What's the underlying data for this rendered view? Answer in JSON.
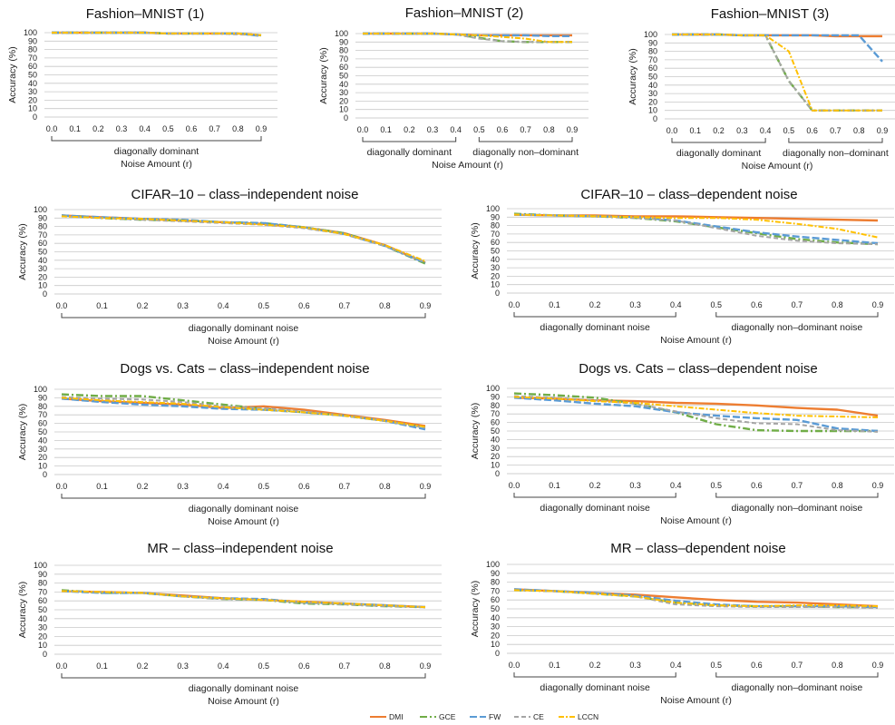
{
  "colors": {
    "DMI": "#ED7D31",
    "GCE": "#70AD47",
    "FW": "#5B9BD5",
    "CE": "#A5A5A5",
    "LCCN": "#FFC000"
  },
  "legend": [
    "DMI",
    "GCE",
    "FW",
    "CE",
    "LCCN"
  ],
  "chart_data": [
    {
      "type": "line",
      "title": "Fashion–MNIST (1)",
      "ylabel": "Accuracy (%)",
      "xlabel": "Noise Amount (r)",
      "ylim": [
        0,
        100
      ],
      "yticks": [
        0,
        10,
        20,
        30,
        40,
        50,
        60,
        70,
        80,
        90,
        100
      ],
      "x": [
        0.0,
        0.1,
        0.2,
        0.3,
        0.4,
        0.5,
        0.6,
        0.7,
        0.8,
        0.9
      ],
      "brackets": [
        {
          "label": "diagonally dominant",
          "from": 0.0,
          "to": 0.9
        }
      ],
      "series": [
        {
          "name": "DMI",
          "values": [
            100,
            100,
            100,
            100,
            100,
            99,
            99,
            99,
            99,
            97
          ]
        },
        {
          "name": "GCE",
          "values": [
            100,
            100,
            100,
            100,
            100,
            99,
            99,
            99,
            99,
            97
          ]
        },
        {
          "name": "FW",
          "values": [
            100,
            100,
            100,
            100,
            100,
            99,
            99,
            99,
            99,
            96
          ]
        },
        {
          "name": "CE",
          "values": [
            100,
            100,
            100,
            100,
            100,
            99,
            99,
            99,
            98,
            97
          ]
        },
        {
          "name": "LCCN",
          "values": [
            100,
            100,
            100,
            100,
            100,
            99,
            99,
            99,
            99,
            97
          ]
        }
      ]
    },
    {
      "type": "line",
      "title": "Fashion–MNIST (2)",
      "ylabel": "Accuracy (%)",
      "xlabel": "Noise Amount (r)",
      "ylim": [
        0,
        100
      ],
      "yticks": [
        0,
        10,
        20,
        30,
        40,
        50,
        60,
        70,
        80,
        90,
        100
      ],
      "x": [
        0.0,
        0.1,
        0.2,
        0.3,
        0.4,
        0.5,
        0.6,
        0.7,
        0.8,
        0.9
      ],
      "brackets": [
        {
          "label": "diagonally dominant",
          "from": 0.0,
          "to": 0.4
        },
        {
          "label": "diagonally non–dominant",
          "from": 0.5,
          "to": 0.9
        }
      ],
      "series": [
        {
          "name": "DMI",
          "values": [
            100,
            100,
            100,
            100,
            99,
            98,
            98,
            98,
            98,
            98
          ]
        },
        {
          "name": "GCE",
          "values": [
            100,
            100,
            100,
            100,
            99,
            95,
            91,
            90,
            90,
            90
          ]
        },
        {
          "name": "FW",
          "values": [
            100,
            100,
            100,
            100,
            99,
            98,
            98,
            98,
            97,
            97
          ]
        },
        {
          "name": "CE",
          "values": [
            100,
            100,
            100,
            100,
            99,
            94,
            91,
            90,
            90,
            90
          ]
        },
        {
          "name": "LCCN",
          "values": [
            100,
            100,
            100,
            100,
            99,
            98,
            96,
            94,
            90,
            90
          ]
        }
      ]
    },
    {
      "type": "line",
      "title": "Fashion–MNIST (3)",
      "ylabel": "Accuracy (%)",
      "xlabel": "Noise Amount (r)",
      "ylim": [
        0,
        100
      ],
      "yticks": [
        0,
        10,
        20,
        30,
        40,
        50,
        60,
        70,
        80,
        90,
        100
      ],
      "x": [
        0.0,
        0.1,
        0.2,
        0.3,
        0.4,
        0.5,
        0.6,
        0.7,
        0.8,
        0.9
      ],
      "brackets": [
        {
          "label": "diagonally dominant",
          "from": 0.0,
          "to": 0.4
        },
        {
          "label": "diagonally non–dominant",
          "from": 0.5,
          "to": 0.9
        }
      ],
      "series": [
        {
          "name": "DMI",
          "values": [
            100,
            100,
            100,
            99,
            99,
            99,
            99,
            98,
            98,
            98
          ]
        },
        {
          "name": "GCE",
          "values": [
            100,
            100,
            100,
            99,
            99,
            45,
            10,
            10,
            10,
            10
          ]
        },
        {
          "name": "FW",
          "values": [
            100,
            100,
            100,
            99,
            99,
            99,
            99,
            99,
            99,
            68
          ]
        },
        {
          "name": "CE",
          "values": [
            100,
            100,
            100,
            99,
            99,
            45,
            10,
            10,
            10,
            10
          ]
        },
        {
          "name": "LCCN",
          "values": [
            100,
            100,
            100,
            99,
            99,
            80,
            10,
            10,
            10,
            10
          ]
        }
      ]
    },
    {
      "type": "line",
      "title": "CIFAR–10 – class–independent noise",
      "ylabel": "Accuracy (%)",
      "xlabel": "Noise Amount (r)",
      "ylim": [
        0,
        100
      ],
      "yticks": [
        0,
        10,
        20,
        30,
        40,
        50,
        60,
        70,
        80,
        90,
        100
      ],
      "x": [
        0.0,
        0.1,
        0.2,
        0.3,
        0.4,
        0.5,
        0.6,
        0.7,
        0.8,
        0.9
      ],
      "brackets": [
        {
          "label": "diagonally dominant noise",
          "from": 0.0,
          "to": 0.9
        }
      ],
      "series": [
        {
          "name": "DMI",
          "values": [
            93,
            91,
            89,
            87,
            85,
            83,
            79,
            72,
            58,
            37
          ]
        },
        {
          "name": "GCE",
          "values": [
            93,
            90,
            88,
            87,
            85,
            84,
            79,
            72,
            57,
            36
          ]
        },
        {
          "name": "FW",
          "values": [
            93,
            91,
            89,
            88,
            85,
            84,
            79,
            71,
            57,
            37
          ]
        },
        {
          "name": "CE",
          "values": [
            92,
            90,
            88,
            86,
            84,
            82,
            78,
            71,
            57,
            38
          ]
        },
        {
          "name": "LCCN",
          "values": [
            92,
            90,
            89,
            87,
            85,
            82,
            79,
            71,
            58,
            39
          ]
        }
      ]
    },
    {
      "type": "line",
      "title": "CIFAR–10 – class–dependent noise",
      "ylabel": "Accuracy (%)",
      "xlabel": "Noise Amount (r)",
      "ylim": [
        0,
        100
      ],
      "yticks": [
        0,
        10,
        20,
        30,
        40,
        50,
        60,
        70,
        80,
        90,
        100
      ],
      "x": [
        0.0,
        0.1,
        0.2,
        0.3,
        0.4,
        0.5,
        0.6,
        0.7,
        0.8,
        0.9
      ],
      "brackets": [
        {
          "label": "diagonally dominant noise",
          "from": 0.0,
          "to": 0.4
        },
        {
          "label": "diagonally non–dominant noise",
          "from": 0.5,
          "to": 0.9
        }
      ],
      "series": [
        {
          "name": "DMI",
          "values": [
            93,
            92,
            92,
            91,
            91,
            90,
            89,
            88,
            87,
            86
          ]
        },
        {
          "name": "GCE",
          "values": [
            94,
            92,
            91,
            89,
            85,
            78,
            71,
            64,
            60,
            58
          ]
        },
        {
          "name": "FW",
          "values": [
            93,
            92,
            91,
            90,
            86,
            79,
            72,
            67,
            63,
            59
          ]
        },
        {
          "name": "CE",
          "values": [
            93,
            92,
            91,
            89,
            86,
            77,
            68,
            62,
            59,
            58
          ]
        },
        {
          "name": "LCCN",
          "values": [
            93,
            92,
            91,
            90,
            89,
            89,
            87,
            82,
            76,
            66
          ]
        }
      ]
    },
    {
      "type": "line",
      "title": "Dogs vs. Cats – class–independent noise",
      "ylabel": "Accuracy (%)",
      "xlabel": "Noise Amount (r)",
      "ylim": [
        0,
        100
      ],
      "yticks": [
        0,
        10,
        20,
        30,
        40,
        50,
        60,
        70,
        80,
        90,
        100
      ],
      "x": [
        0.0,
        0.1,
        0.2,
        0.3,
        0.4,
        0.5,
        0.6,
        0.7,
        0.8,
        0.9
      ],
      "brackets": [
        {
          "label": "diagonally dominant noise",
          "from": 0.0,
          "to": 0.9
        }
      ],
      "series": [
        {
          "name": "DMI",
          "values": [
            89,
            86,
            84,
            82,
            78,
            80,
            76,
            70,
            64,
            57
          ]
        },
        {
          "name": "GCE",
          "values": [
            94,
            92,
            92,
            87,
            82,
            77,
            73,
            69,
            63,
            55
          ]
        },
        {
          "name": "FW",
          "values": [
            89,
            85,
            82,
            80,
            77,
            76,
            73,
            69,
            63,
            53
          ]
        },
        {
          "name": "CE",
          "values": [
            91,
            89,
            88,
            85,
            80,
            78,
            74,
            69,
            63,
            55
          ]
        },
        {
          "name": "LCCN",
          "values": [
            90,
            87,
            85,
            83,
            79,
            76,
            73,
            69,
            63,
            56
          ]
        }
      ]
    },
    {
      "type": "line",
      "title": "Dogs vs. Cats – class–dependent noise",
      "ylabel": "Accuracy (%)",
      "xlabel": "Noise Amount (r)",
      "ylim": [
        0,
        100
      ],
      "yticks": [
        0,
        10,
        20,
        30,
        40,
        50,
        60,
        70,
        80,
        90,
        100
      ],
      "x": [
        0.0,
        0.1,
        0.2,
        0.3,
        0.4,
        0.5,
        0.6,
        0.7,
        0.8,
        0.9
      ],
      "brackets": [
        {
          "label": "diagonally dominant noise",
          "from": 0.0,
          "to": 0.4
        },
        {
          "label": "diagonally non–dominant noise",
          "from": 0.5,
          "to": 0.9
        }
      ],
      "series": [
        {
          "name": "DMI",
          "values": [
            89,
            88,
            86,
            85,
            83,
            82,
            80,
            77,
            75,
            68
          ]
        },
        {
          "name": "GCE",
          "values": [
            94,
            92,
            89,
            82,
            72,
            58,
            51,
            50,
            50,
            50
          ]
        },
        {
          "name": "FW",
          "values": [
            89,
            86,
            82,
            79,
            72,
            68,
            65,
            63,
            53,
            50
          ]
        },
        {
          "name": "CE",
          "values": [
            91,
            89,
            86,
            82,
            73,
            65,
            59,
            58,
            51,
            49
          ]
        },
        {
          "name": "LCCN",
          "values": [
            90,
            88,
            85,
            83,
            79,
            75,
            71,
            68,
            67,
            66
          ]
        }
      ]
    },
    {
      "type": "line",
      "title": "MR – class–independent noise",
      "ylabel": "Accuracy (%)",
      "xlabel": "Noise Amount (r)",
      "ylim": [
        0,
        100
      ],
      "yticks": [
        0,
        10,
        20,
        30,
        40,
        50,
        60,
        70,
        80,
        90,
        100
      ],
      "x": [
        0.0,
        0.1,
        0.2,
        0.3,
        0.4,
        0.5,
        0.6,
        0.7,
        0.8,
        0.9
      ],
      "brackets": [
        {
          "label": "diagonally dominant noise",
          "from": 0.0,
          "to": 0.9
        }
      ],
      "series": [
        {
          "name": "DMI",
          "values": [
            71,
            70,
            69,
            66,
            63,
            61,
            59,
            57,
            55,
            53
          ]
        },
        {
          "name": "GCE",
          "values": [
            72,
            69,
            69,
            65,
            62,
            61,
            57,
            56,
            54,
            53
          ]
        },
        {
          "name": "FW",
          "values": [
            71,
            69,
            69,
            65,
            63,
            62,
            58,
            57,
            55,
            53
          ]
        },
        {
          "name": "CE",
          "values": [
            71,
            70,
            69,
            65,
            62,
            61,
            58,
            56,
            54,
            53
          ]
        },
        {
          "name": "LCCN",
          "values": [
            71,
            70,
            69,
            65,
            63,
            61,
            59,
            57,
            55,
            53
          ]
        }
      ]
    },
    {
      "type": "line",
      "title": "MR – class–dependent noise",
      "ylabel": "Accuracy (%)",
      "xlabel": "Noise Amount (r)",
      "ylim": [
        0,
        100
      ],
      "yticks": [
        0,
        10,
        20,
        30,
        40,
        50,
        60,
        70,
        80,
        90,
        100
      ],
      "x": [
        0.0,
        0.1,
        0.2,
        0.3,
        0.4,
        0.5,
        0.6,
        0.7,
        0.8,
        0.9
      ],
      "brackets": [
        {
          "label": "diagonally dominant noise",
          "from": 0.0,
          "to": 0.4
        },
        {
          "label": "diagonally non–dominant noise",
          "from": 0.5,
          "to": 0.9
        }
      ],
      "series": [
        {
          "name": "DMI",
          "values": [
            72,
            70,
            68,
            66,
            63,
            60,
            58,
            57,
            55,
            53
          ]
        },
        {
          "name": "GCE",
          "values": [
            71,
            70,
            67,
            64,
            57,
            54,
            53,
            53,
            52,
            52
          ]
        },
        {
          "name": "FW",
          "values": [
            72,
            70,
            68,
            65,
            59,
            55,
            53,
            53,
            53,
            52
          ]
        },
        {
          "name": "CE",
          "values": [
            71,
            70,
            67,
            64,
            55,
            53,
            52,
            52,
            52,
            51
          ]
        },
        {
          "name": "LCCN",
          "values": [
            71,
            70,
            67,
            64,
            57,
            54,
            53,
            54,
            54,
            53
          ]
        }
      ]
    }
  ]
}
